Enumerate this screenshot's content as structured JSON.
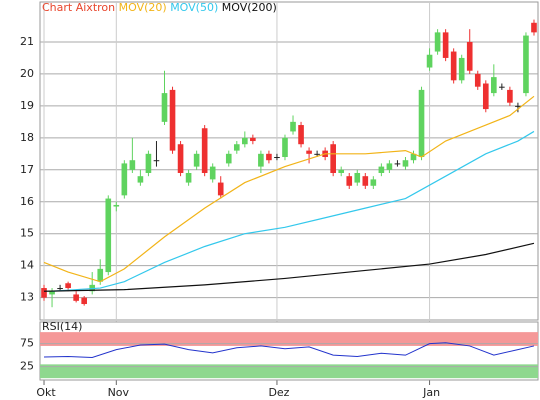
{
  "chart_data": [
    {
      "type": "candlestick",
      "title": "Chart Aixtron",
      "title_color": "#e8452c",
      "open": [
        13.3,
        13.1,
        13.3,
        13.45,
        13.1,
        13.0,
        13.2,
        13.5,
        13.8,
        15.85,
        16.2,
        17.0,
        16.6,
        16.9,
        17.3,
        18.5,
        19.5,
        17.8,
        16.6,
        17.1,
        18.3,
        16.7,
        16.6,
        17.2,
        17.6,
        17.8,
        18.0,
        17.1,
        17.5,
        17.4,
        17.4,
        18.2,
        18.4,
        17.6,
        17.5,
        17.6,
        17.8,
        16.9,
        16.8,
        16.6,
        16.8,
        16.5,
        16.9,
        17.0,
        17.2,
        17.1,
        17.3,
        17.4,
        20.2,
        20.7,
        21.3,
        20.7,
        19.8,
        21.0,
        20.0,
        19.7,
        19.4,
        19.6,
        19.5,
        19.0,
        19.4,
        21.6
      ],
      "high": [
        13.4,
        13.3,
        13.4,
        13.5,
        13.2,
        13.05,
        13.8,
        14.2,
        16.2,
        16.0,
        17.3,
        18.0,
        17.0,
        17.6,
        17.9,
        20.1,
        19.6,
        17.9,
        17.0,
        17.6,
        18.4,
        17.2,
        16.8,
        17.6,
        17.9,
        18.2,
        18.1,
        17.6,
        17.6,
        17.5,
        18.1,
        18.7,
        18.5,
        17.7,
        17.6,
        17.7,
        17.9,
        17.1,
        16.9,
        17.0,
        16.9,
        16.8,
        17.2,
        17.3,
        17.3,
        17.4,
        17.6,
        19.6,
        20.8,
        21.4,
        21.4,
        20.8,
        20.6,
        21.4,
        20.1,
        19.8,
        20.3,
        19.7,
        19.6,
        19.1,
        21.3,
        21.7
      ],
      "low": [
        12.9,
        12.7,
        13.2,
        13.2,
        12.85,
        12.75,
        13.1,
        13.4,
        13.7,
        15.7,
        16.1,
        16.9,
        16.5,
        16.8,
        17.1,
        18.4,
        17.5,
        16.8,
        16.5,
        17.0,
        16.8,
        16.6,
        16.1,
        17.1,
        17.5,
        17.7,
        17.8,
        16.9,
        17.2,
        17.3,
        17.3,
        18.1,
        17.7,
        17.2,
        17.4,
        17.3,
        16.8,
        16.8,
        16.4,
        16.5,
        16.4,
        16.4,
        16.8,
        16.9,
        17.1,
        17.0,
        17.2,
        17.3,
        20.1,
        20.6,
        20.4,
        19.7,
        19.7,
        20.0,
        19.5,
        18.8,
        19.3,
        19.5,
        19.0,
        18.8,
        19.3,
        21.2
      ],
      "close": [
        13.0,
        13.2,
        13.3,
        13.3,
        12.9,
        12.8,
        13.4,
        13.9,
        16.1,
        15.9,
        17.2,
        17.3,
        16.8,
        17.5,
        17.3,
        19.4,
        17.6,
        16.9,
        16.9,
        17.5,
        16.9,
        17.1,
        16.2,
        17.5,
        17.8,
        18.0,
        17.9,
        17.5,
        17.3,
        17.4,
        18.0,
        18.5,
        17.8,
        17.5,
        17.5,
        17.4,
        16.9,
        17.0,
        16.5,
        16.9,
        16.5,
        16.7,
        17.1,
        17.2,
        17.2,
        17.3,
        17.5,
        19.5,
        20.6,
        21.3,
        20.5,
        19.8,
        20.5,
        20.1,
        19.6,
        18.9,
        19.9,
        19.6,
        19.1,
        19.0,
        21.2,
        21.3
      ],
      "up_color": "#5fd35f",
      "down_color": "#ee3030",
      "flat_color": "#222222",
      "series": [
        {
          "name": "MOV(20)",
          "color": "#f2b418",
          "x": [
            0,
            3,
            7,
            10,
            15,
            20,
            25,
            30,
            35,
            40,
            45,
            47,
            50,
            55,
            58,
            61
          ],
          "values": [
            14.1,
            13.8,
            13.5,
            13.9,
            14.9,
            15.8,
            16.6,
            17.1,
            17.5,
            17.5,
            17.6,
            17.4,
            17.9,
            18.4,
            18.7,
            19.3
          ]
        },
        {
          "name": "MOV(50)",
          "color": "#33c8ec",
          "x": [
            1,
            7,
            10,
            15,
            20,
            25,
            30,
            35,
            40,
            45,
            50,
            55,
            59,
            61
          ],
          "values": [
            13.2,
            13.3,
            13.5,
            14.1,
            14.6,
            15.0,
            15.2,
            15.5,
            15.8,
            16.1,
            16.8,
            17.5,
            17.9,
            18.2
          ]
        },
        {
          "name": "MOV(200)",
          "color": "#111111",
          "x": [
            0,
            10,
            20,
            30,
            40,
            48,
            55,
            61
          ],
          "values": [
            13.2,
            13.25,
            13.4,
            13.6,
            13.85,
            14.05,
            14.35,
            14.7
          ]
        }
      ],
      "ylim": [
        12.3,
        22.0
      ],
      "yticks": [
        13,
        14,
        15,
        16,
        17,
        18,
        19,
        20,
        21
      ],
      "grid": true,
      "xlim": [
        -0.5,
        61.5
      ],
      "xticks": [
        {
          "value": 0,
          "label": "Okt"
        },
        {
          "value": 9,
          "label": "Nov"
        },
        {
          "value": 29,
          "label": "Dez"
        },
        {
          "value": 48,
          "label": "Jan"
        }
      ]
    },
    {
      "type": "line",
      "title": "RSI(14)",
      "series": [
        {
          "color": "#2233cc",
          "x": [
            0,
            3,
            6,
            9,
            12,
            15,
            18,
            21,
            24,
            27,
            30,
            33,
            36,
            39,
            42,
            45,
            48,
            50,
            53,
            56,
            59,
            61
          ],
          "values": [
            46,
            47,
            45,
            62,
            72,
            74,
            62,
            55,
            66,
            70,
            64,
            68,
            50,
            47,
            54,
            50,
            75,
            77,
            70,
            50,
            62,
            70
          ]
        }
      ],
      "bands": [
        {
          "range": [
            70,
            100
          ],
          "color": "#f59898"
        },
        {
          "range": [
            0,
            30
          ],
          "color": "#8ed88e"
        }
      ],
      "ylim": [
        -4,
        122
      ],
      "yticks": [
        25,
        75
      ],
      "xlim": [
        -0.5,
        61.5
      ]
    }
  ]
}
